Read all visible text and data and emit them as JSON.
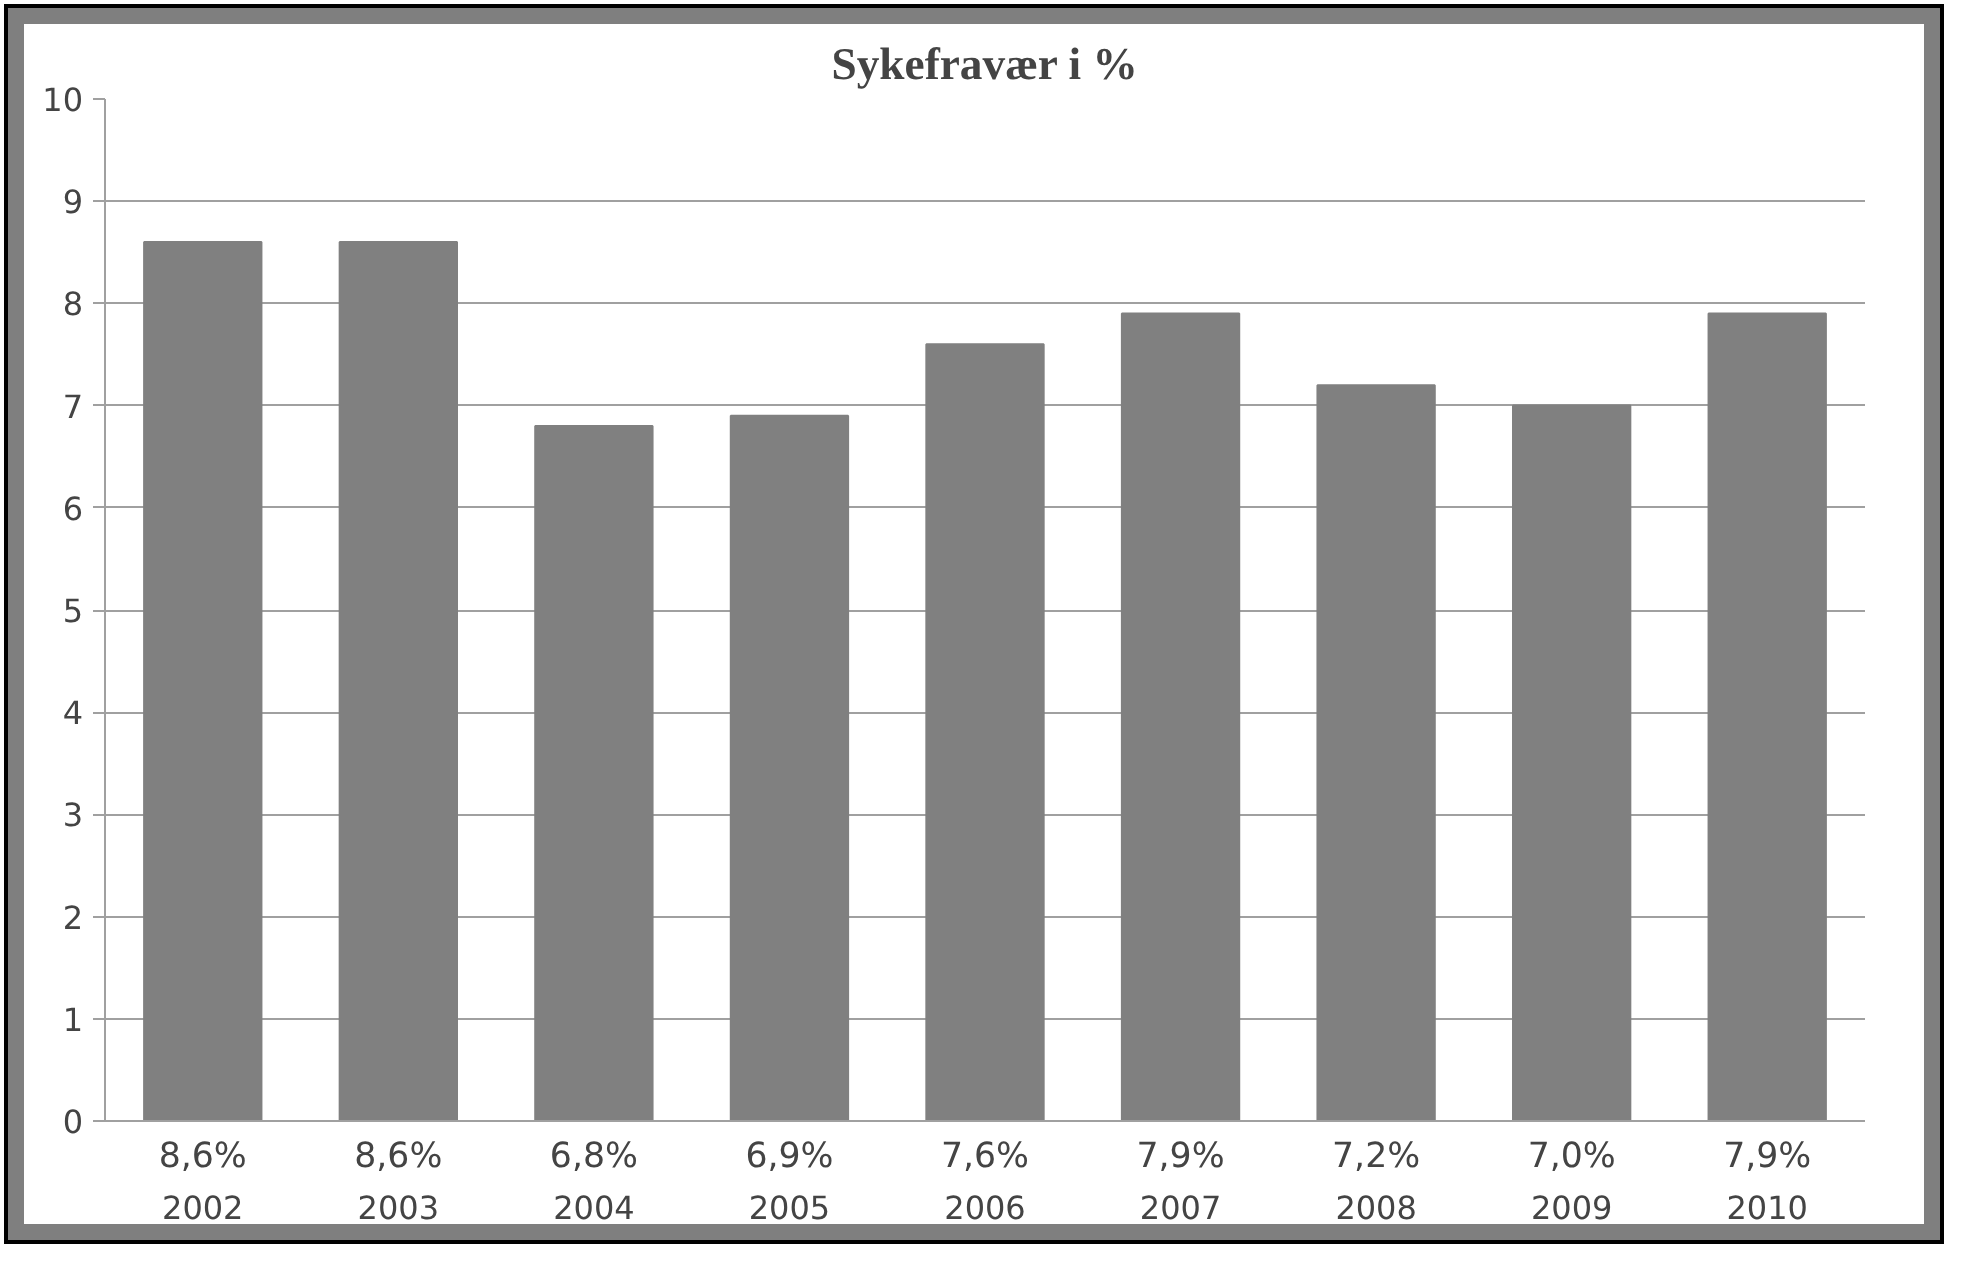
{
  "chart_data": {
    "type": "bar",
    "title": "Sykefravær i %",
    "categories": [
      "2002",
      "2003",
      "2004",
      "2005",
      "2006",
      "2007",
      "2008",
      "2009",
      "2010"
    ],
    "values": [
      8.6,
      8.6,
      6.8,
      6.9,
      7.6,
      7.9,
      7.2,
      7.0,
      7.9
    ],
    "value_labels": [
      "8,6%",
      "8,6%",
      "6,8%",
      "6,9%",
      "7,6%",
      "7,9%",
      "7,2%",
      "7,0%",
      "7,9%"
    ],
    "color": "#808080",
    "ylim": [
      0,
      10
    ],
    "yticks": [
      0,
      1,
      2,
      3,
      4,
      5,
      6,
      7,
      8,
      9,
      10
    ],
    "grid": "y"
  }
}
